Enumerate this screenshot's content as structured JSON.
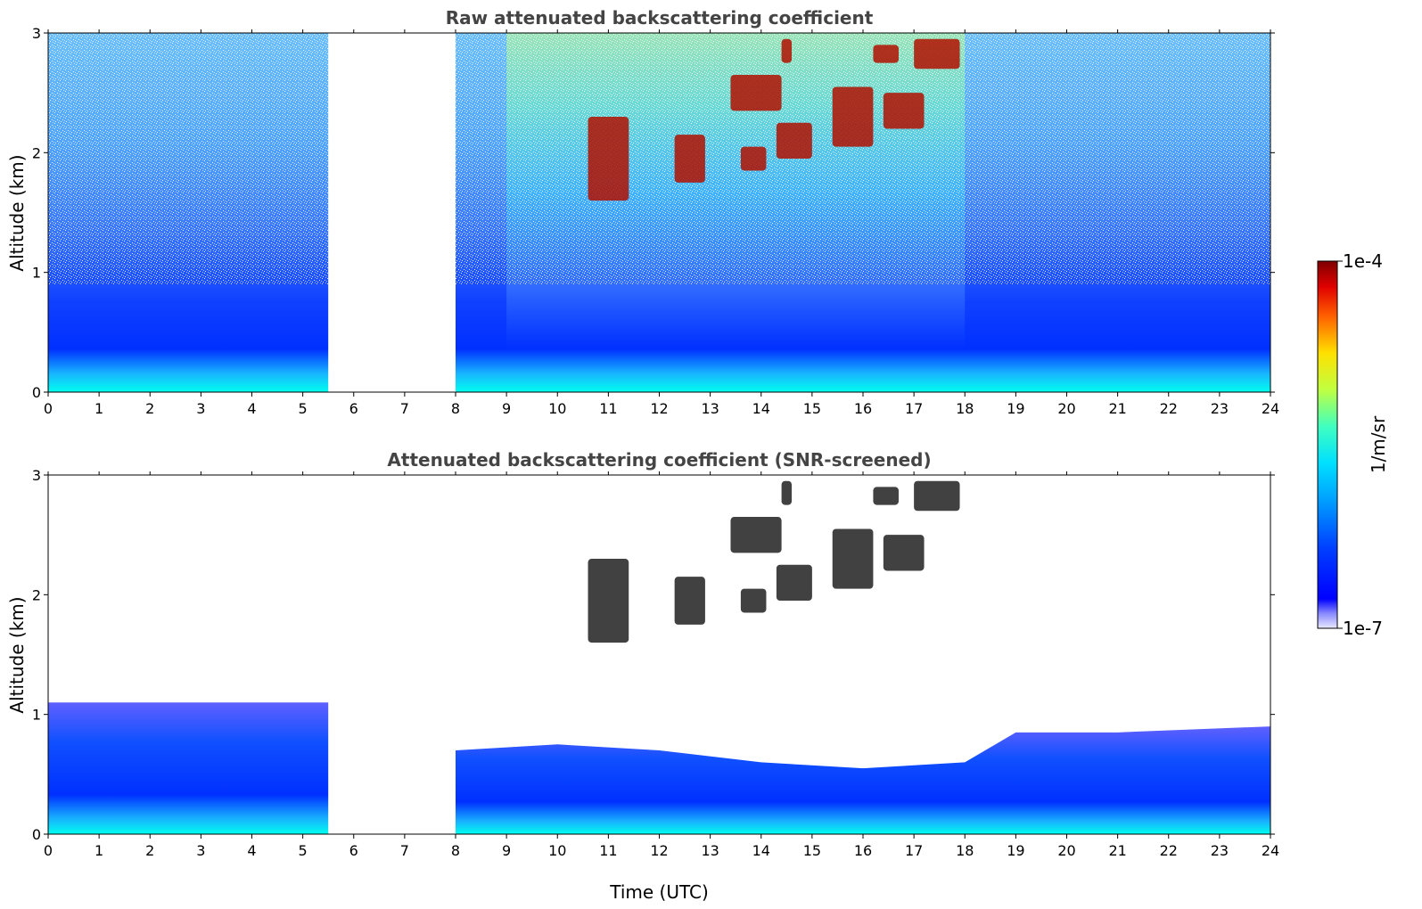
{
  "chart_data": [
    {
      "type": "heatmap",
      "title": "Raw attenuated backscattering coefficient",
      "xlabel": "",
      "ylabel": "Altitude (km)",
      "xlim": [
        0,
        24
      ],
      "ylim": [
        0,
        3
      ],
      "xticks": [
        "0",
        "1",
        "2",
        "3",
        "4",
        "5",
        "6",
        "7",
        "8",
        "9",
        "10",
        "11",
        "12",
        "13",
        "14",
        "15",
        "16",
        "17",
        "18",
        "19",
        "20",
        "21",
        "22",
        "23",
        "24"
      ],
      "yticks": [
        "0",
        "1",
        "2",
        "3"
      ],
      "data_gaps_utc": [
        [
          5.5,
          8.0
        ]
      ],
      "cloud_patches": [
        {
          "x0": 10.6,
          "x1": 11.4,
          "y0": 1.6,
          "y1": 2.3
        },
        {
          "x0": 12.3,
          "x1": 12.9,
          "y0": 1.75,
          "y1": 2.15
        },
        {
          "x0": 13.6,
          "x1": 14.1,
          "y0": 1.85,
          "y1": 2.05
        },
        {
          "x0": 14.3,
          "x1": 15.0,
          "y0": 1.95,
          "y1": 2.25
        },
        {
          "x0": 13.4,
          "x1": 14.4,
          "y0": 2.35,
          "y1": 2.65
        },
        {
          "x0": 14.4,
          "x1": 14.6,
          "y0": 2.75,
          "y1": 2.95
        },
        {
          "x0": 15.4,
          "x1": 16.2,
          "y0": 2.05,
          "y1": 2.55
        },
        {
          "x0": 16.2,
          "x1": 16.7,
          "y0": 2.75,
          "y1": 2.9
        },
        {
          "x0": 16.4,
          "x1": 17.2,
          "y0": 2.2,
          "y1": 2.5
        },
        {
          "x0": 17.0,
          "x1": 17.9,
          "y0": 2.7,
          "y1": 2.95
        }
      ]
    },
    {
      "type": "heatmap",
      "title": "Attenuated backscattering coefficient (SNR-screened)",
      "xlabel": "Time (UTC)",
      "ylabel": "Altitude (km)",
      "xlim": [
        0,
        24
      ],
      "ylim": [
        0,
        3
      ],
      "xticks": [
        "0",
        "1",
        "2",
        "3",
        "4",
        "5",
        "6",
        "7",
        "8",
        "9",
        "10",
        "11",
        "12",
        "13",
        "14",
        "15",
        "16",
        "17",
        "18",
        "19",
        "20",
        "21",
        "22",
        "23",
        "24"
      ],
      "yticks": [
        "0",
        "1",
        "2",
        "3"
      ],
      "data_gaps_utc": [
        [
          5.5,
          8.0
        ]
      ],
      "boundary_layer_top_km": [
        {
          "x": 0.0,
          "y": 1.1
        },
        {
          "x": 5.5,
          "y": 1.1
        },
        {
          "x": 8.0,
          "y": 0.7
        },
        {
          "x": 10.0,
          "y": 0.75
        },
        {
          "x": 12.0,
          "y": 0.7
        },
        {
          "x": 14.0,
          "y": 0.6
        },
        {
          "x": 16.0,
          "y": 0.55
        },
        {
          "x": 18.0,
          "y": 0.6
        },
        {
          "x": 19.0,
          "y": 0.85
        },
        {
          "x": 21.0,
          "y": 0.85
        },
        {
          "x": 24.0,
          "y": 0.9
        }
      ]
    }
  ],
  "colorbar": {
    "label": "1/m/sr",
    "max_label": "1e-4",
    "min_label": "1e-7",
    "colormap": "jet",
    "min_color": "#e8e8ff",
    "max_color": "#7f0000"
  }
}
